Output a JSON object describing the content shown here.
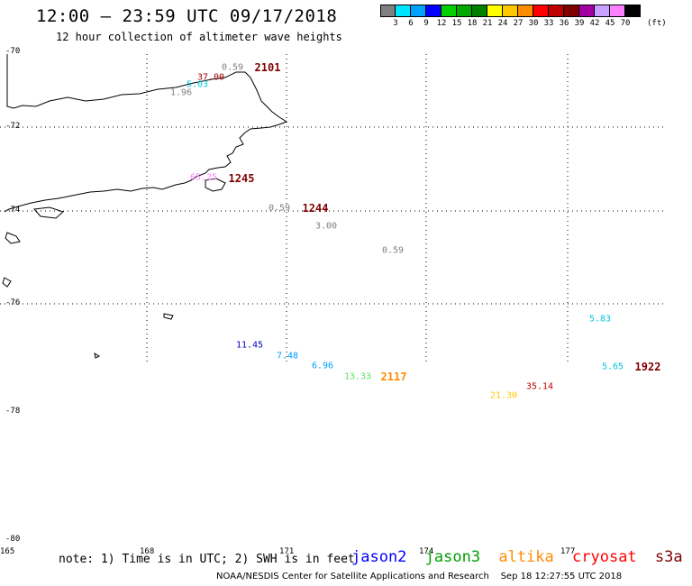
{
  "header": {
    "title": "12:00 – 23:59 UTC 09/17/2018",
    "subtitle": "12 hour collection of altimeter wave heights"
  },
  "legend": {
    "colors": [
      "#808080",
      "#00e5ff",
      "#00a0ff",
      "#0000ff",
      "#00d000",
      "#00a800",
      "#008000",
      "#ffff00",
      "#ffc800",
      "#ff8c00",
      "#ff0000",
      "#c00000",
      "#800000",
      "#a000a0",
      "#c8a0ff",
      "#ff80ff",
      "#000000"
    ],
    "labels": [
      "3",
      "6",
      "9",
      "12",
      "15",
      "18",
      "21",
      "24",
      "27",
      "30",
      "33",
      "36",
      "39",
      "42",
      "45",
      "70"
    ],
    "unit": "(ft)"
  },
  "axes": {
    "lat_labels": [
      "-70",
      "-72",
      "-74",
      "-76",
      "-78",
      "-80"
    ],
    "lon_labels": [
      "165",
      "168",
      "171",
      "174",
      "177"
    ]
  },
  "observations": [
    {
      "text": "0.59",
      "color": "#808080"
    },
    {
      "text": "37.00",
      "color": "#a00000"
    },
    {
      "text": "5.03",
      "color": "#00c8e0"
    },
    {
      "text": "1.96",
      "color": "#808080"
    },
    {
      "text": "65.25",
      "color": "#ff80ff"
    },
    {
      "text": "0.59",
      "color": "#808080"
    },
    {
      "text": "3.00",
      "color": "#808080"
    },
    {
      "text": "0.59",
      "color": "#808080"
    },
    {
      "text": "5.83",
      "color": "#00c8e0"
    },
    {
      "text": "11.45",
      "color": "#0000c0"
    },
    {
      "text": "7.48",
      "color": "#00a0ff"
    },
    {
      "text": "6.96",
      "color": "#00a0ff"
    },
    {
      "text": "13.33",
      "color": "#60e060"
    },
    {
      "text": "21.30",
      "color": "#ffc800"
    },
    {
      "text": "35.14",
      "color": "#c00000"
    },
    {
      "text": "5.65",
      "color": "#00c8e0"
    }
  ],
  "pass_times": [
    {
      "text": "2101",
      "color": "#800000"
    },
    {
      "text": "1245",
      "color": "#800000"
    },
    {
      "text": "1244",
      "color": "#800000"
    },
    {
      "text": "2117",
      "color": "#ff8c00"
    },
    {
      "text": "1922",
      "color": "#800000"
    }
  ],
  "footer": {
    "note": "note: 1) Time is in UTC; 2) SWH is in feet",
    "satellites": [
      {
        "name": "jason2",
        "color": "#0000ff"
      },
      {
        "name": "jason3",
        "color": "#00a000"
      },
      {
        "name": "altika",
        "color": "#ff8c00"
      },
      {
        "name": "cryosat",
        "color": "#ff0000"
      },
      {
        "name": "s3a",
        "color": "#800000"
      }
    ],
    "credit": "NOAA/NESDIS Center for Satellite Applications and Research",
    "timestamp": "Sep 18 12:27:55 UTC 2018"
  }
}
